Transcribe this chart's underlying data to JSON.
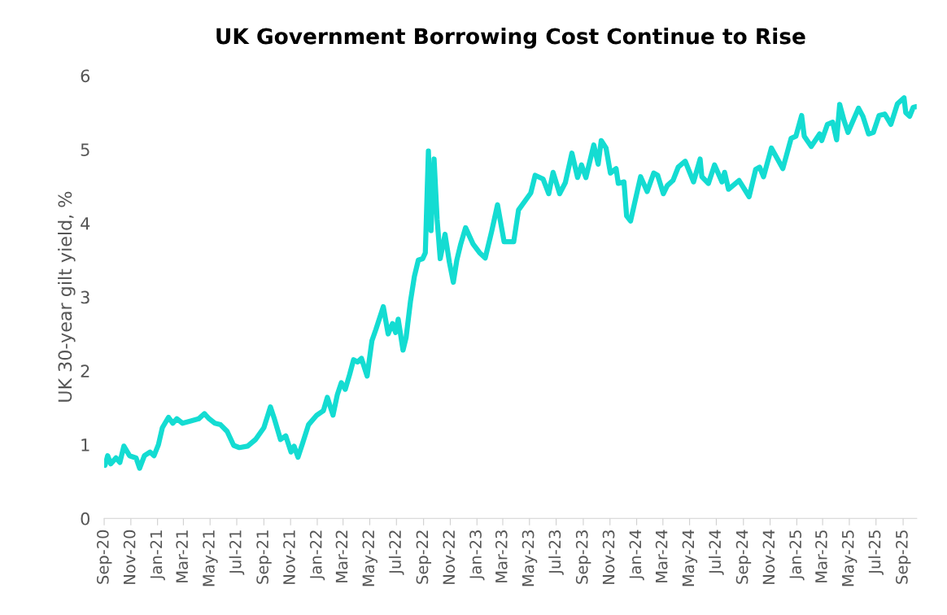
{
  "chart_data": {
    "type": "line",
    "title": "UK Government Borrowing Cost Continue to Rise",
    "ylabel": "UK 30-year gilt yield, %",
    "x": [
      "2020-09-03",
      "2020-09-09",
      "2020-09-16",
      "2020-09-28",
      "2020-10-07",
      "2020-10-16",
      "2020-10-29",
      "2020-11-13",
      "2020-11-21",
      "2020-12-02",
      "2020-12-15",
      "2020-12-24",
      "2021-01-03",
      "2021-01-12",
      "2021-01-26",
      "2021-02-05",
      "2021-02-14",
      "2021-02-27",
      "2021-03-18",
      "2021-04-05",
      "2021-04-18",
      "2021-04-29",
      "2021-05-12",
      "2021-05-25",
      "2021-06-09",
      "2021-06-24",
      "2021-07-07",
      "2021-07-26",
      "2021-08-13",
      "2021-09-01",
      "2021-09-16",
      "2021-09-25",
      "2021-10-09",
      "2021-10-21",
      "2021-11-02",
      "2021-11-09",
      "2021-11-18",
      "2021-11-28",
      "2021-12-12",
      "2021-12-31",
      "2022-01-15",
      "2022-01-24",
      "2022-02-06",
      "2022-02-16",
      "2022-02-25",
      "2022-03-06",
      "2022-03-16",
      "2022-03-25",
      "2022-04-03",
      "2022-04-12",
      "2022-04-25",
      "2022-05-06",
      "2022-05-15",
      "2022-06-01",
      "2022-06-12",
      "2022-06-22",
      "2022-06-29",
      "2022-07-05",
      "2022-07-16",
      "2022-07-23",
      "2022-08-02",
      "2022-08-11",
      "2022-08-20",
      "2022-08-30",
      "2022-09-05",
      "2022-09-12",
      "2022-09-18",
      "2022-09-25",
      "2022-10-02",
      "2022-10-09",
      "2022-10-20",
      "2022-10-30",
      "2022-11-08",
      "2022-11-16",
      "2022-11-25",
      "2022-12-06",
      "2022-12-23",
      "2023-01-07",
      "2023-01-20",
      "2023-02-04",
      "2023-02-17",
      "2023-03-04",
      "2023-03-26",
      "2023-04-06",
      "2023-05-04",
      "2023-05-14",
      "2023-06-01",
      "2023-06-14",
      "2023-06-24",
      "2023-07-09",
      "2023-07-22",
      "2023-08-06",
      "2023-08-19",
      "2023-08-28",
      "2023-09-07",
      "2023-09-25",
      "2023-10-05",
      "2023-10-12",
      "2023-10-23",
      "2023-11-02",
      "2023-11-15",
      "2023-11-20",
      "2023-12-03",
      "2023-12-09",
      "2023-12-18",
      "2024-01-10",
      "2024-01-25",
      "2024-02-09",
      "2024-02-18",
      "2024-03-02",
      "2024-03-11",
      "2024-03-24",
      "2024-04-05",
      "2024-04-21",
      "2024-05-10",
      "2024-05-25",
      "2024-05-29",
      "2024-06-13",
      "2024-06-27",
      "2024-07-14",
      "2024-07-20",
      "2024-07-29",
      "2024-08-22",
      "2024-09-14",
      "2024-09-29",
      "2024-10-08",
      "2024-10-17",
      "2024-11-04",
      "2024-11-30",
      "2024-12-19",
      "2024-12-30",
      "2025-01-12",
      "2025-01-18",
      "2025-02-03",
      "2025-02-22",
      "2025-02-27",
      "2025-03-12",
      "2025-03-24",
      "2025-04-02",
      "2025-04-09",
      "2025-04-19",
      "2025-04-28",
      "2025-05-22",
      "2025-06-01",
      "2025-06-14",
      "2025-06-25",
      "2025-07-08",
      "2025-07-21",
      "2025-08-04",
      "2025-08-19",
      "2025-09-03",
      "2025-09-07",
      "2025-09-16",
      "2025-09-24",
      "2025-10-01"
    ],
    "series": [
      {
        "color": "#14dcd2",
        "values": [
          0.72,
          0.85,
          0.74,
          0.82,
          0.76,
          0.98,
          0.85,
          0.82,
          0.68,
          0.85,
          0.9,
          0.85,
          1.0,
          1.23,
          1.37,
          1.29,
          1.35,
          1.29,
          1.32,
          1.35,
          1.42,
          1.35,
          1.29,
          1.27,
          1.18,
          0.99,
          0.96,
          0.98,
          1.07,
          1.23,
          1.51,
          1.35,
          1.07,
          1.12,
          0.9,
          0.98,
          0.83,
          1.01,
          1.27,
          1.4,
          1.46,
          1.64,
          1.4,
          1.68,
          1.84,
          1.75,
          1.95,
          2.15,
          2.12,
          2.17,
          1.93,
          2.41,
          2.56,
          2.87,
          2.5,
          2.64,
          2.52,
          2.7,
          2.28,
          2.45,
          2.94,
          3.28,
          3.5,
          3.52,
          3.6,
          4.98,
          3.9,
          4.87,
          4.05,
          3.52,
          3.85,
          3.47,
          3.2,
          3.5,
          3.72,
          3.94,
          3.72,
          3.6,
          3.53,
          3.9,
          4.25,
          3.75,
          3.75,
          4.18,
          4.41,
          4.65,
          4.6,
          4.4,
          4.69,
          4.4,
          4.55,
          4.95,
          4.62,
          4.79,
          4.62,
          5.06,
          4.8,
          5.12,
          5.02,
          4.68,
          4.74,
          4.54,
          4.56,
          4.1,
          4.03,
          4.63,
          4.43,
          4.68,
          4.65,
          4.4,
          4.51,
          4.58,
          4.76,
          4.84,
          4.56,
          4.87,
          4.63,
          4.54,
          4.79,
          4.56,
          4.69,
          4.46,
          4.58,
          4.36,
          4.73,
          4.76,
          4.63,
          5.02,
          4.74,
          5.15,
          5.18,
          5.46,
          5.18,
          5.04,
          5.21,
          5.12,
          5.34,
          5.37,
          5.13,
          5.61,
          5.39,
          5.23,
          5.56,
          5.45,
          5.21,
          5.23,
          5.46,
          5.48,
          5.34,
          5.62,
          5.7,
          5.5,
          5.45,
          5.57,
          5.58
        ]
      }
    ],
    "xlim": [
      "2020-09-01",
      "2025-10-02"
    ],
    "xticks": [
      {
        "value": "2020-09-01",
        "label": "Sep-20"
      },
      {
        "value": "2020-11-01",
        "label": "Nov-20"
      },
      {
        "value": "2021-01-01",
        "label": "Jan-21"
      },
      {
        "value": "2021-03-01",
        "label": "Mar-21"
      },
      {
        "value": "2021-05-01",
        "label": "May-21"
      },
      {
        "value": "2021-07-01",
        "label": "Jul-21"
      },
      {
        "value": "2021-09-01",
        "label": "Sep-21"
      },
      {
        "value": "2021-11-01",
        "label": "Nov-21"
      },
      {
        "value": "2022-01-01",
        "label": "Jan-22"
      },
      {
        "value": "2022-03-01",
        "label": "Mar-22"
      },
      {
        "value": "2022-05-01",
        "label": "May-22"
      },
      {
        "value": "2022-07-01",
        "label": "Jul-22"
      },
      {
        "value": "2022-09-01",
        "label": "Sep-22"
      },
      {
        "value": "2022-11-01",
        "label": "Nov-22"
      },
      {
        "value": "2023-01-01",
        "label": "Jan-23"
      },
      {
        "value": "2023-03-01",
        "label": "Mar-23"
      },
      {
        "value": "2023-05-01",
        "label": "May-23"
      },
      {
        "value": "2023-07-01",
        "label": "Jul-23"
      },
      {
        "value": "2023-09-01",
        "label": "Sep-23"
      },
      {
        "value": "2023-11-01",
        "label": "Nov-23"
      },
      {
        "value": "2024-01-01",
        "label": "Jan-24"
      },
      {
        "value": "2024-03-01",
        "label": "Mar-24"
      },
      {
        "value": "2024-05-01",
        "label": "May-24"
      },
      {
        "value": "2024-07-01",
        "label": "Jul-24"
      },
      {
        "value": "2024-09-01",
        "label": "Sep-24"
      },
      {
        "value": "2024-11-01",
        "label": "Nov-24"
      },
      {
        "value": "2025-01-01",
        "label": "Jan-25"
      },
      {
        "value": "2025-03-01",
        "label": "Mar-25"
      },
      {
        "value": "2025-05-01",
        "label": "May-25"
      },
      {
        "value": "2025-07-01",
        "label": "Jul-25"
      },
      {
        "value": "2025-09-01",
        "label": "Sep-25"
      }
    ],
    "ylim": [
      0,
      6
    ],
    "yticks": [
      0,
      1,
      2,
      3,
      4,
      5,
      6
    ],
    "grid": false,
    "legend": false,
    "marker": "none",
    "line_style": "solid"
  }
}
